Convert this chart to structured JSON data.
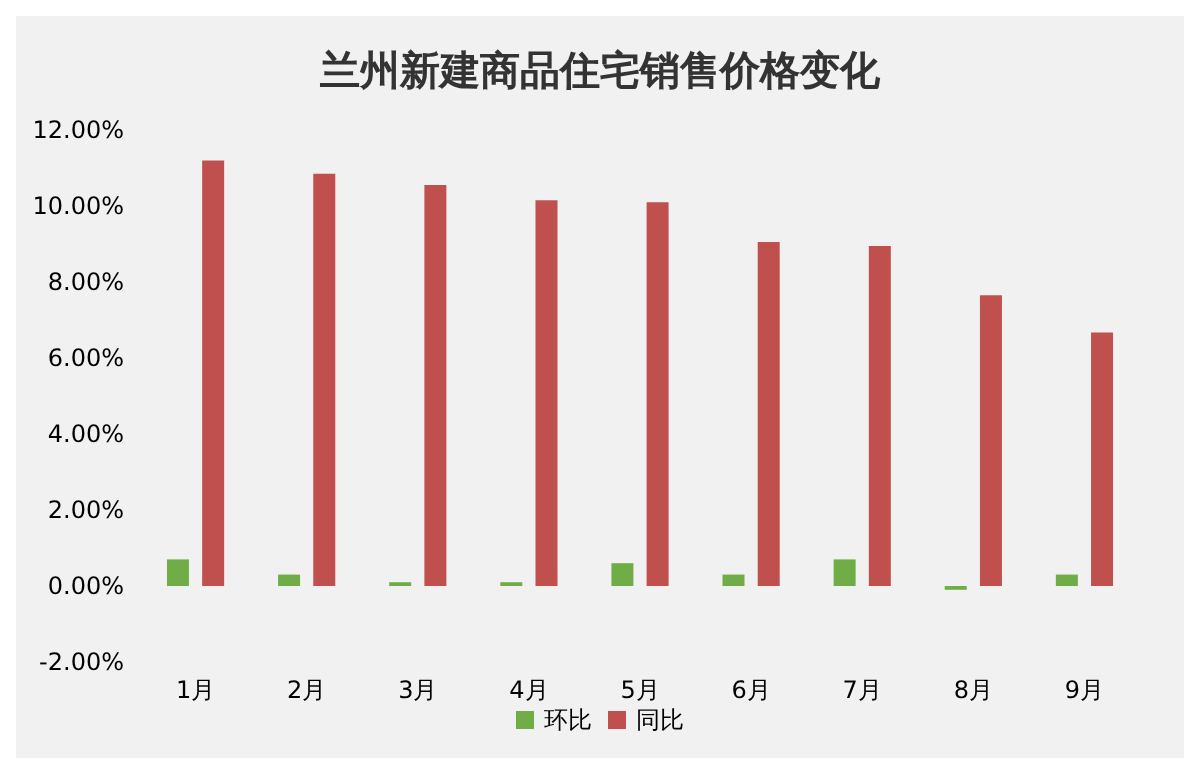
{
  "chart_data": {
    "type": "bar",
    "title": "兰州新建商品住宅销售价格变化",
    "categories": [
      "1月",
      "2月",
      "3月",
      "4月",
      "5月",
      "6月",
      "7月",
      "8月",
      "9月"
    ],
    "series": [
      {
        "name": "环比",
        "color": "#70ad47",
        "values": [
          0.7,
          0.3,
          0.1,
          0.1,
          0.6,
          0.3,
          0.7,
          -0.1,
          0.3
        ]
      },
      {
        "name": "同比",
        "color": "#c0504d",
        "values": [
          11.2,
          10.85,
          10.55,
          10.15,
          10.1,
          9.05,
          8.95,
          7.65,
          6.67
        ]
      }
    ],
    "ylim": [
      -2,
      12
    ],
    "yticks": [
      {
        "value": -2,
        "label": "-2.00%"
      },
      {
        "value": 0,
        "label": "0.00%"
      },
      {
        "value": 2,
        "label": "2.00%"
      },
      {
        "value": 4,
        "label": "4.00%"
      },
      {
        "value": 6,
        "label": "6.00%"
      },
      {
        "value": 8,
        "label": "8.00%"
      },
      {
        "value": 10,
        "label": "10.00%"
      },
      {
        "value": 12,
        "label": "12.00%"
      }
    ],
    "grid": false,
    "legend": "bottom"
  }
}
